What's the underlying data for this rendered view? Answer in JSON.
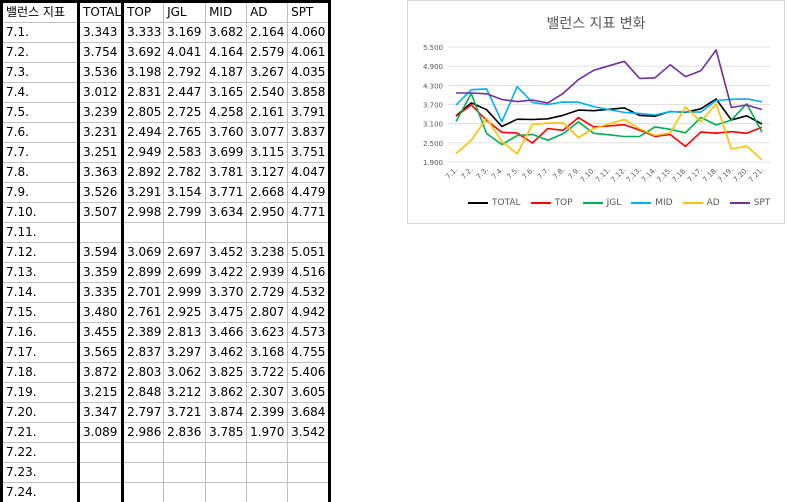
{
  "sheet": {
    "headers": [
      "밸런스 지표",
      "TOTAL",
      "TOP",
      "JGL",
      "MID",
      "AD",
      "SPT"
    ],
    "rows": [
      [
        "7.1.",
        "3.343",
        "3.333",
        "3.169",
        "3.682",
        "2.164",
        "4.060"
      ],
      [
        "7.2.",
        "3.754",
        "3.692",
        "4.041",
        "4.164",
        "2.579",
        "4.061"
      ],
      [
        "7.3.",
        "3.536",
        "3.198",
        "2.792",
        "4.187",
        "3.267",
        "4.035"
      ],
      [
        "7.4.",
        "3.012",
        "2.831",
        "2.447",
        "3.165",
        "2.540",
        "3.858"
      ],
      [
        "7.5.",
        "3.239",
        "2.805",
        "2.725",
        "4.258",
        "2.161",
        "3.791"
      ],
      [
        "7.6.",
        "3.231",
        "2.494",
        "2.765",
        "3.760",
        "3.077",
        "3.837"
      ],
      [
        "7.7.",
        "3.251",
        "2.949",
        "2.583",
        "3.699",
        "3.115",
        "3.751"
      ],
      [
        "7.8.",
        "3.363",
        "2.892",
        "2.782",
        "3.781",
        "3.127",
        "4.047"
      ],
      [
        "7.9.",
        "3.526",
        "3.291",
        "3.154",
        "3.771",
        "2.668",
        "4.479"
      ],
      [
        "7.10.",
        "3.507",
        "2.998",
        "2.799",
        "3.634",
        "2.950",
        "4.771"
      ],
      [
        "7.11.",
        "",
        "",
        "",
        "",
        "",
        ""
      ],
      [
        "7.12.",
        "3.594",
        "3.069",
        "2.697",
        "3.452",
        "3.238",
        "5.051"
      ],
      [
        "7.13.",
        "3.359",
        "2.899",
        "2.699",
        "3.422",
        "2.939",
        "4.516"
      ],
      [
        "7.14.",
        "3.335",
        "2.701",
        "2.999",
        "3.370",
        "2.729",
        "4.532"
      ],
      [
        "7.15.",
        "3.480",
        "2.761",
        "2.925",
        "3.475",
        "2.807",
        "4.942"
      ],
      [
        "7.16.",
        "3.455",
        "2.389",
        "2.813",
        "3.466",
        "3.623",
        "4.573"
      ],
      [
        "7.17.",
        "3.565",
        "2.837",
        "3.297",
        "3.462",
        "3.168",
        "4.755"
      ],
      [
        "7.18.",
        "3.872",
        "2.803",
        "3.062",
        "3.825",
        "3.722",
        "5.406"
      ],
      [
        "7.19.",
        "3.215",
        "2.848",
        "3.212",
        "3.862",
        "2.307",
        "3.605"
      ],
      [
        "7.20.",
        "3.347",
        "2.797",
        "3.721",
        "3.874",
        "2.399",
        "3.684"
      ],
      [
        "7.21.",
        "3.089",
        "2.986",
        "2.836",
        "3.785",
        "1.970",
        "3.542"
      ],
      [
        "7.22.",
        "",
        "",
        "",
        "",
        "",
        ""
      ],
      [
        "7.23.",
        "",
        "",
        "",
        "",
        "",
        ""
      ],
      [
        "7.24.",
        "",
        "",
        "",
        "",
        "",
        ""
      ]
    ]
  },
  "chart_data": {
    "type": "line",
    "title": "밸런스 지표 변화",
    "x": [
      "7.1.",
      "7.2.",
      "7.3.",
      "7.4.",
      "7.5.",
      "7.6.",
      "7.7.",
      "7.8.",
      "7.9.",
      "7.10.",
      "7.11.",
      "7.12.",
      "7.13.",
      "7.14.",
      "7.15.",
      "7.16.",
      "7.17.",
      "7.18.",
      "7.19.",
      "7.20.",
      "7.21."
    ],
    "ylim": [
      1.9,
      5.5
    ],
    "yticks": [
      "1.900",
      "2.500",
      "3.100",
      "3.700",
      "4.300",
      "4.900",
      "5.500"
    ],
    "grid": true,
    "legend": "bottom",
    "series": [
      {
        "name": "TOTAL",
        "color": "#000000",
        "values": [
          3.343,
          3.754,
          3.536,
          3.012,
          3.239,
          3.231,
          3.251,
          3.363,
          3.526,
          3.507,
          3.55,
          3.594,
          3.359,
          3.335,
          3.48,
          3.455,
          3.565,
          3.872,
          3.215,
          3.347,
          3.089
        ]
      },
      {
        "name": "TOP",
        "color": "#ff0000",
        "values": [
          3.333,
          3.692,
          3.198,
          2.831,
          2.805,
          2.494,
          2.949,
          2.892,
          3.291,
          2.998,
          3.03,
          3.069,
          2.899,
          2.701,
          2.761,
          2.389,
          2.837,
          2.803,
          2.848,
          2.797,
          2.986
        ]
      },
      {
        "name": "JGL",
        "color": "#00b050",
        "values": [
          3.169,
          4.041,
          2.792,
          2.447,
          2.725,
          2.765,
          2.583,
          2.782,
          3.154,
          2.799,
          2.75,
          2.697,
          2.699,
          2.999,
          2.925,
          2.813,
          3.297,
          3.062,
          3.212,
          3.721,
          2.836
        ]
      },
      {
        "name": "MID",
        "color": "#00b0f0",
        "values": [
          3.682,
          4.164,
          4.187,
          3.165,
          4.258,
          3.76,
          3.699,
          3.781,
          3.771,
          3.634,
          3.54,
          3.452,
          3.422,
          3.37,
          3.475,
          3.466,
          3.462,
          3.825,
          3.862,
          3.874,
          3.785
        ]
      },
      {
        "name": "AD",
        "color": "#ffc000",
        "values": [
          2.164,
          2.579,
          3.267,
          2.54,
          2.161,
          3.077,
          3.115,
          3.127,
          2.668,
          2.95,
          3.09,
          3.238,
          2.939,
          2.729,
          2.807,
          3.623,
          3.168,
          3.722,
          2.307,
          2.399,
          1.97
        ]
      },
      {
        "name": "SPT",
        "color": "#7030a0",
        "values": [
          4.06,
          4.061,
          4.035,
          3.858,
          3.791,
          3.837,
          3.751,
          4.047,
          4.479,
          4.771,
          4.91,
          5.051,
          4.516,
          4.532,
          4.942,
          4.573,
          4.755,
          5.406,
          3.605,
          3.684,
          3.542
        ]
      }
    ]
  }
}
